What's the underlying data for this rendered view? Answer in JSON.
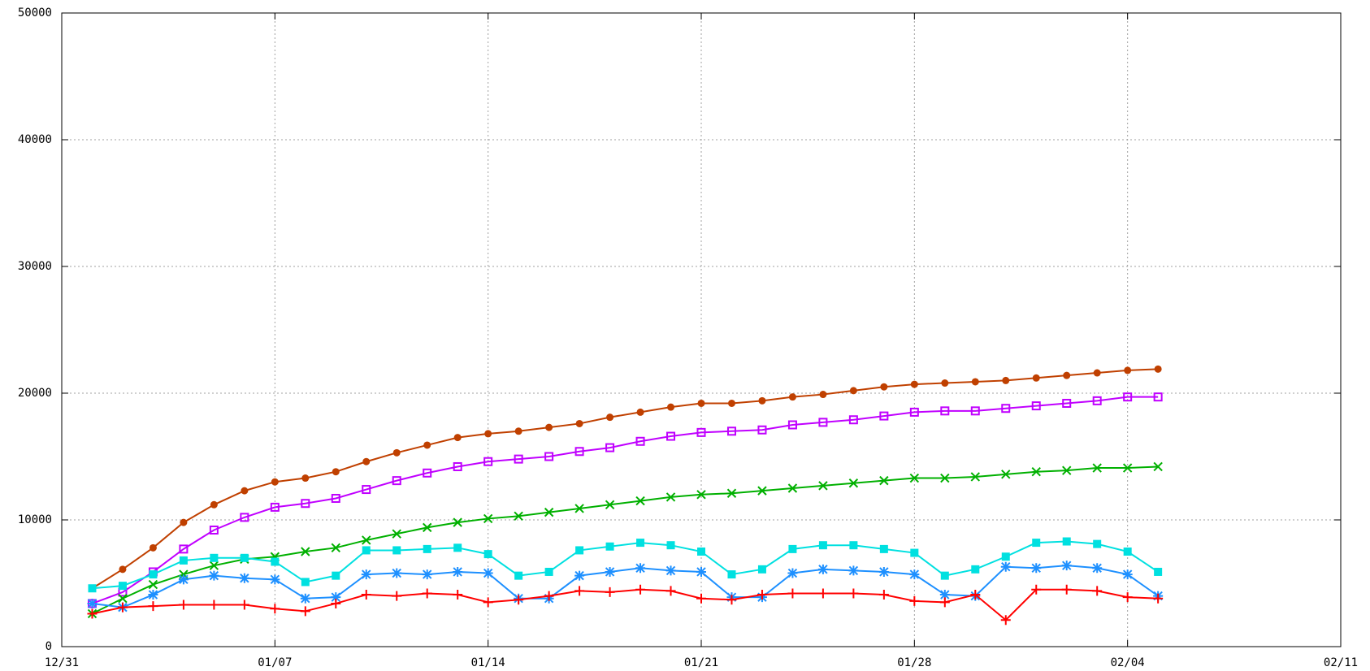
{
  "chart_data": {
    "type": "line",
    "x": [
      1,
      2,
      3,
      4,
      5,
      6,
      7,
      8,
      9,
      10,
      11,
      12,
      13,
      14,
      15,
      16,
      17,
      18,
      19,
      20,
      21,
      22,
      23,
      24,
      25,
      26,
      27,
      28,
      29,
      30,
      31,
      32,
      33,
      34,
      35,
      36
    ],
    "xlim": [
      0,
      42
    ],
    "xticks": [
      {
        "value": 0,
        "label": "12/31"
      },
      {
        "value": 7,
        "label": "01/07"
      },
      {
        "value": 14,
        "label": "01/14"
      },
      {
        "value": 21,
        "label": "01/21"
      },
      {
        "value": 28,
        "label": "01/28"
      },
      {
        "value": 35,
        "label": "02/04"
      },
      {
        "value": 42,
        "label": "02/11"
      }
    ],
    "ylim": [
      0,
      50000
    ],
    "yticks": [
      0,
      10000,
      20000,
      30000,
      40000,
      50000
    ],
    "grid": true,
    "series": [
      {
        "color": "#c04000",
        "marker": "circle",
        "values": [
          4600,
          6100,
          7800,
          9800,
          11200,
          12300,
          13000,
          13300,
          13800,
          14600,
          15300,
          15900,
          16500,
          16800,
          17000,
          17300,
          17600,
          18100,
          18500,
          18900,
          19200,
          19200,
          19400,
          19700,
          19900,
          20200,
          20500,
          20700,
          20800,
          20900,
          21000,
          21200,
          21400,
          21600,
          21800,
          21900
        ]
      },
      {
        "color": "#c000ff",
        "marker": "open-square",
        "values": [
          3400,
          4300,
          5900,
          7700,
          9200,
          10200,
          11000,
          11300,
          11700,
          12400,
          13100,
          13700,
          14200,
          14600,
          14800,
          15000,
          15400,
          15700,
          16200,
          16600,
          16900,
          17000,
          17100,
          17500,
          17700,
          17900,
          18200,
          18500,
          18600,
          18600,
          18800,
          19000,
          19200,
          19400,
          19700,
          19700
        ]
      },
      {
        "color": "#00b000",
        "marker": "cross",
        "values": [
          2600,
          3800,
          4900,
          5700,
          6400,
          6900,
          7100,
          7500,
          7800,
          8400,
          8900,
          9400,
          9800,
          10100,
          10300,
          10600,
          10900,
          11200,
          11500,
          11800,
          12000,
          12100,
          12300,
          12500,
          12700,
          12900,
          13100,
          13300,
          13300,
          13400,
          13600,
          13800,
          13900,
          14100,
          14100,
          14200
        ]
      },
      {
        "color": "#00e0e0",
        "marker": "square",
        "values": [
          4600,
          4800,
          5700,
          6800,
          7000,
          7000,
          6700,
          5100,
          5600,
          7600,
          7600,
          7700,
          7800,
          7300,
          5600,
          5900,
          7600,
          7900,
          8200,
          8000,
          7500,
          5700,
          6100,
          7700,
          8000,
          8000,
          7700,
          7400,
          5600,
          6100,
          7100,
          8200,
          8300,
          8100,
          7500,
          5900
        ]
      },
      {
        "color": "#1e90ff",
        "marker": "asterisk",
        "values": [
          3400,
          3100,
          4100,
          5300,
          5600,
          5400,
          5300,
          3800,
          3900,
          5700,
          5800,
          5700,
          5900,
          5800,
          3800,
          3800,
          5600,
          5900,
          6200,
          6000,
          5900,
          3900,
          3900,
          5800,
          6100,
          6000,
          5900,
          5700,
          4100,
          4000,
          6300,
          6200,
          6400,
          6200,
          5700,
          4000
        ]
      },
      {
        "color": "#ff0000",
        "marker": "plus",
        "values": [
          2600,
          3100,
          3200,
          3300,
          3300,
          3300,
          3000,
          2800,
          3400,
          4100,
          4000,
          4200,
          4100,
          3500,
          3700,
          4000,
          4400,
          4300,
          4500,
          4400,
          3800,
          3700,
          4100,
          4200,
          4200,
          4200,
          4100,
          3600,
          3500,
          4100,
          2100,
          4500,
          4500,
          4400,
          3900,
          3800
        ]
      }
    ]
  }
}
